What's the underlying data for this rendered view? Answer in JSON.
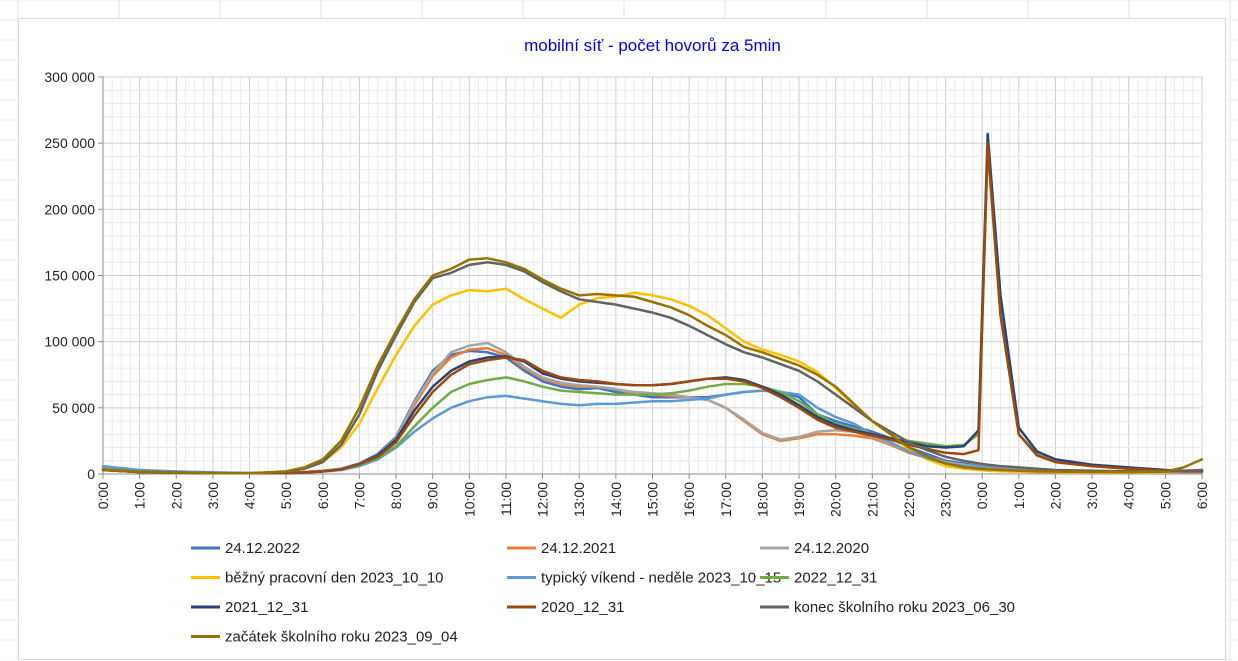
{
  "chart_data": {
    "type": "line",
    "title": "mobilní síť  - počet hovorů za 5min",
    "xlabel": "",
    "ylabel": "",
    "ylim": [
      0,
      300000
    ],
    "yticks": [
      0,
      50000,
      100000,
      150000,
      200000,
      250000,
      300000
    ],
    "ytick_labels": [
      "0",
      "50 000",
      "100 000",
      "150 000",
      "200 000",
      "250 000",
      "300 000"
    ],
    "xlim": [
      0,
      30
    ],
    "x_unit": "hours since 0:00 (first day) through 6:00 next morning",
    "xticks": [
      0,
      1,
      2,
      3,
      4,
      5,
      6,
      7,
      8,
      9,
      10,
      11,
      12,
      13,
      14,
      15,
      16,
      17,
      18,
      19,
      20,
      21,
      22,
      23,
      24,
      25,
      26,
      27,
      28,
      29,
      30
    ],
    "xtick_labels": [
      "0:00",
      "1:00",
      "2:00",
      "3:00",
      "4:00",
      "5:00",
      "6:00",
      "7:00",
      "8:00",
      "9:00",
      "10:00",
      "11:00",
      "12:00",
      "13:00",
      "14:00",
      "15:00",
      "16:00",
      "17:00",
      "18:00",
      "19:00",
      "20:00",
      "21:00",
      "22:00",
      "23:00",
      "0:00",
      "1:00",
      "2:00",
      "3:00",
      "4:00",
      "5:00",
      "6:00"
    ],
    "grid": true,
    "legend_position": "bottom",
    "x": [
      0,
      1,
      2,
      3,
      4,
      5,
      5.5,
      6,
      6.5,
      7,
      7.5,
      8,
      8.5,
      9,
      9.5,
      10,
      10.5,
      11,
      11.5,
      12,
      12.5,
      13,
      13.5,
      14,
      14.5,
      15,
      15.5,
      16,
      16.5,
      17,
      17.5,
      18,
      18.5,
      19,
      19.5,
      20,
      20.5,
      21,
      21.5,
      22,
      22.5,
      23,
      23.5,
      23.9,
      24.15,
      24.5,
      25,
      25.5,
      26,
      27,
      28,
      29,
      29.5,
      30
    ],
    "series": [
      {
        "name": "24.12.2022",
        "color": "#4472c4",
        "values": [
          5000,
          2000,
          1500,
          800,
          500,
          700,
          1500,
          2500,
          4000,
          8000,
          15000,
          28000,
          55000,
          78000,
          90000,
          93000,
          92000,
          88000,
          78000,
          70000,
          66000,
          64000,
          65000,
          62000,
          60000,
          58000,
          58000,
          58000,
          58000,
          60000,
          62000,
          63000,
          62000,
          58000,
          45000,
          40000,
          36000,
          32000,
          27000,
          20000,
          15000,
          10000,
          8000,
          6000,
          5000,
          4000,
          3000,
          2500,
          2000,
          1500,
          1200,
          1000,
          1200,
          1500
        ]
      },
      {
        "name": "24.12.2021",
        "color": "#ed7d31",
        "values": [
          4000,
          1800,
          1200,
          700,
          500,
          600,
          1400,
          2400,
          3800,
          7500,
          14000,
          26000,
          52000,
          74000,
          88000,
          94000,
          95000,
          90000,
          80000,
          72000,
          68000,
          66000,
          66000,
          64000,
          61000,
          60000,
          59000,
          58000,
          56000,
          50000,
          40000,
          30000,
          25000,
          27000,
          30000,
          30000,
          29000,
          27000,
          22000,
          16000,
          12000,
          8000,
          6000,
          5000,
          4000,
          3500,
          2800,
          2200,
          1800,
          1300,
          1000,
          900,
          1000,
          1200
        ]
      },
      {
        "name": "24.12.2020",
        "color": "#a5a5a5",
        "values": [
          4500,
          1900,
          1300,
          700,
          500,
          600,
          1400,
          2400,
          3800,
          7500,
          14000,
          27000,
          54000,
          76000,
          92000,
          97000,
          99000,
          92000,
          81000,
          73000,
          69000,
          67000,
          66000,
          64000,
          62000,
          61000,
          60000,
          58000,
          56000,
          50000,
          41000,
          31000,
          26000,
          28000,
          32000,
          33000,
          32000,
          28000,
          23000,
          17000,
          13000,
          9000,
          7000,
          5500,
          4500,
          3800,
          3000,
          2400,
          1900,
          1400,
          1100,
          950,
          1050,
          1300
        ]
      },
      {
        "name": "běžný pracovní den 2023_10_10",
        "color": "#ffc000",
        "values": [
          3000,
          1500,
          1000,
          600,
          500,
          1500,
          4000,
          9000,
          20000,
          38000,
          65000,
          90000,
          112000,
          128000,
          135000,
          139000,
          138000,
          140000,
          132000,
          125000,
          118000,
          128000,
          133000,
          134000,
          137000,
          135000,
          132000,
          127000,
          120000,
          110000,
          100000,
          94000,
          90000,
          85000,
          77000,
          65000,
          52000,
          40000,
          30000,
          18000,
          11000,
          6000,
          4000,
          3000,
          2500,
          2000,
          1700,
          1400,
          1200,
          1000,
          1000,
          1200,
          2000,
          3000
        ]
      },
      {
        "name": "typický víkend - neděle 2023_10_15",
        "color": "#5b9bd5",
        "values": [
          6000,
          3000,
          2000,
          1200,
          800,
          800,
          1200,
          1800,
          3000,
          6000,
          11000,
          20000,
          32000,
          42000,
          50000,
          55000,
          58000,
          59000,
          57000,
          55000,
          53000,
          52000,
          53000,
          53000,
          54000,
          55000,
          55000,
          56000,
          57000,
          60000,
          62000,
          63000,
          62000,
          60000,
          50000,
          43000,
          38000,
          30000,
          24000,
          17000,
          12000,
          8000,
          6000,
          5000,
          4000,
          3500,
          3000,
          2500,
          2000,
          1700,
          1500,
          1700,
          2200,
          3000
        ]
      },
      {
        "name": "2022_12_31",
        "color": "#70ad47",
        "values": [
          3000,
          1500,
          1000,
          600,
          500,
          600,
          1200,
          2000,
          3500,
          7000,
          12000,
          21000,
          36000,
          50000,
          62000,
          68000,
          71000,
          73000,
          70000,
          66000,
          63000,
          62000,
          61000,
          60000,
          60000,
          60000,
          61000,
          63000,
          66000,
          68000,
          68000,
          66000,
          62000,
          55000,
          45000,
          38000,
          34000,
          30000,
          27000,
          25000,
          23000,
          21000,
          22000,
          30000,
          245000,
          120000,
          30000,
          15000,
          9000,
          6000,
          4000,
          2500,
          2000,
          2000
        ]
      },
      {
        "name": "2021_12_31",
        "color": "#264478",
        "values": [
          3000,
          1500,
          1000,
          600,
          500,
          600,
          1200,
          2000,
          3500,
          7500,
          14000,
          26000,
          48000,
          66000,
          78000,
          85000,
          88000,
          89000,
          85000,
          76000,
          72000,
          70000,
          69000,
          68000,
          67000,
          67000,
          68000,
          70000,
          72000,
          73000,
          71000,
          66000,
          60000,
          52000,
          43000,
          37000,
          33000,
          30000,
          27000,
          24000,
          21000,
          20000,
          21000,
          33000,
          257000,
          135000,
          35000,
          17000,
          11000,
          7000,
          5000,
          3000,
          2500,
          2500
        ]
      },
      {
        "name": "2020_12_31",
        "color": "#9e480e",
        "values": [
          3000,
          1400,
          900,
          600,
          500,
          600,
          1200,
          2000,
          3500,
          7500,
          13000,
          24000,
          44000,
          62000,
          75000,
          83000,
          86000,
          88000,
          86000,
          78000,
          73000,
          71000,
          70000,
          68000,
          67000,
          67000,
          68000,
          70000,
          72000,
          72000,
          70000,
          65000,
          58000,
          50000,
          41000,
          35000,
          32000,
          29000,
          26000,
          22000,
          19000,
          16000,
          15000,
          18000,
          250000,
          120000,
          30000,
          14000,
          9000,
          6000,
          4000,
          2500,
          2000,
          2000
        ]
      },
      {
        "name": "konec školního roku 2023_06_30",
        "color": "#636363",
        "values": [
          3500,
          1700,
          1100,
          700,
          600,
          1500,
          4000,
          9000,
          22000,
          45000,
          78000,
          105000,
          130000,
          148000,
          152000,
          158000,
          160000,
          158000,
          153000,
          145000,
          138000,
          132000,
          130000,
          128000,
          125000,
          122000,
          118000,
          112000,
          105000,
          98000,
          92000,
          88000,
          83000,
          78000,
          70000,
          60000,
          50000,
          40000,
          32000,
          24000,
          18000,
          13000,
          10000,
          8000,
          7000,
          6000,
          5000,
          4000,
          3000,
          2500,
          2000,
          2000,
          2500,
          3000
        ]
      },
      {
        "name": "začátek školního roku 2023_09_04",
        "color": "#997300",
        "values": [
          3500,
          1700,
          1100,
          700,
          600,
          2000,
          5000,
          11000,
          25000,
          50000,
          82000,
          108000,
          132000,
          150000,
          155000,
          162000,
          163000,
          160000,
          155000,
          147000,
          140000,
          135000,
          136000,
          135000,
          134000,
          130000,
          126000,
          120000,
          112000,
          105000,
          96000,
          92000,
          87000,
          82000,
          75000,
          66000,
          53000,
          40000,
          30000,
          20000,
          13000,
          8000,
          5000,
          4000,
          3500,
          3000,
          2500,
          2000,
          1800,
          1500,
          1400,
          1800,
          5000,
          11000
        ]
      }
    ]
  }
}
